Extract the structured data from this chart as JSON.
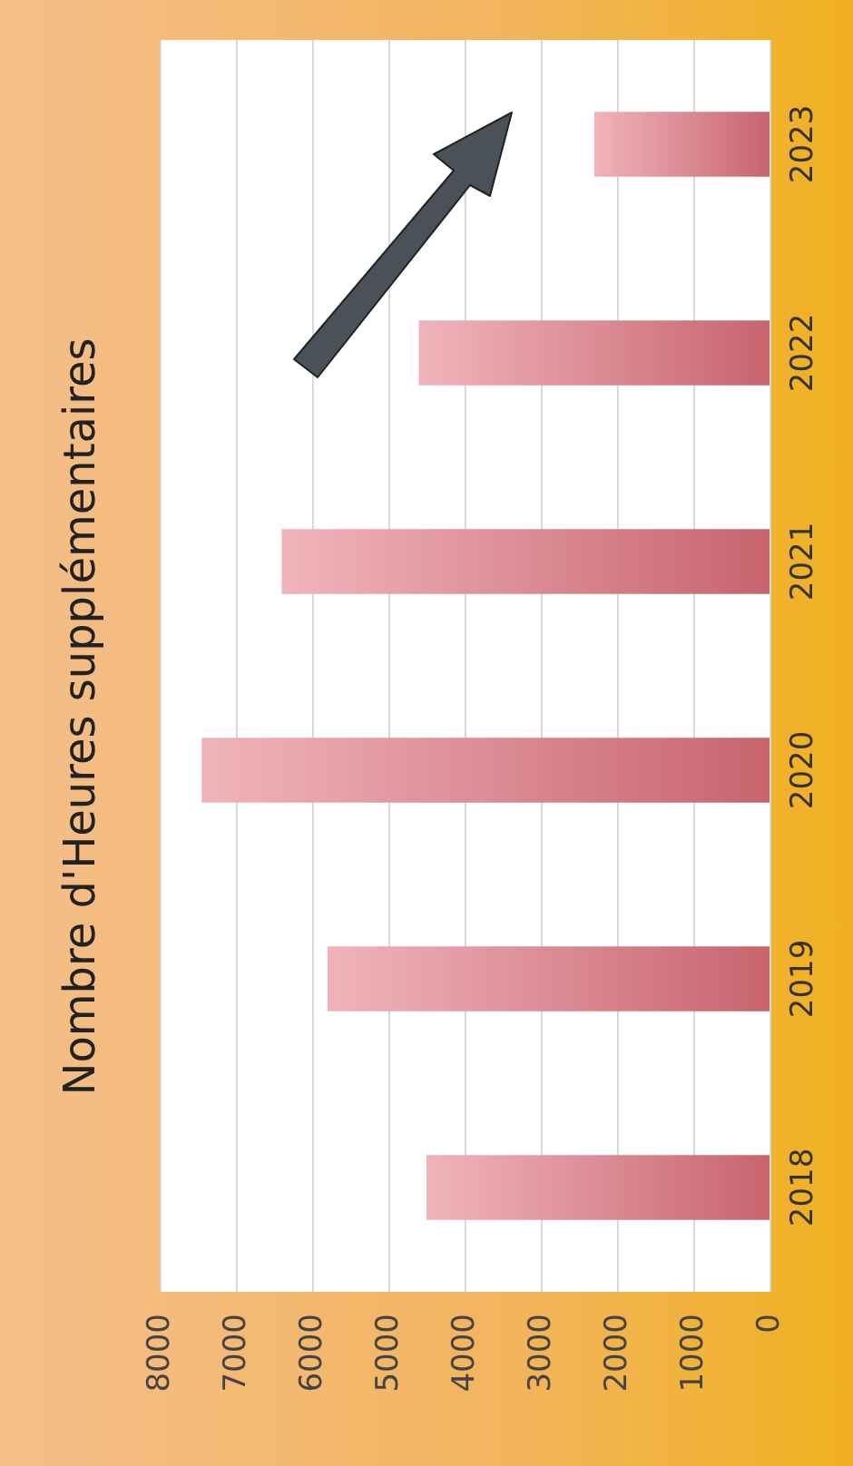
{
  "chart_data": {
    "type": "bar",
    "orientation": "horizontal",
    "title": "Nombre d'Heures supplémentaires",
    "categories": [
      "2023",
      "2022",
      "2021",
      "2020",
      "2019",
      "2018"
    ],
    "values": [
      2300,
      4600,
      6400,
      7450,
      5800,
      4500
    ],
    "color": "#c8646e",
    "xlim": [
      8000,
      0
    ],
    "xticks": [
      0,
      1000,
      2000,
      3000,
      4000,
      5000,
      6000,
      7000,
      8000
    ],
    "grid": "x"
  }
}
